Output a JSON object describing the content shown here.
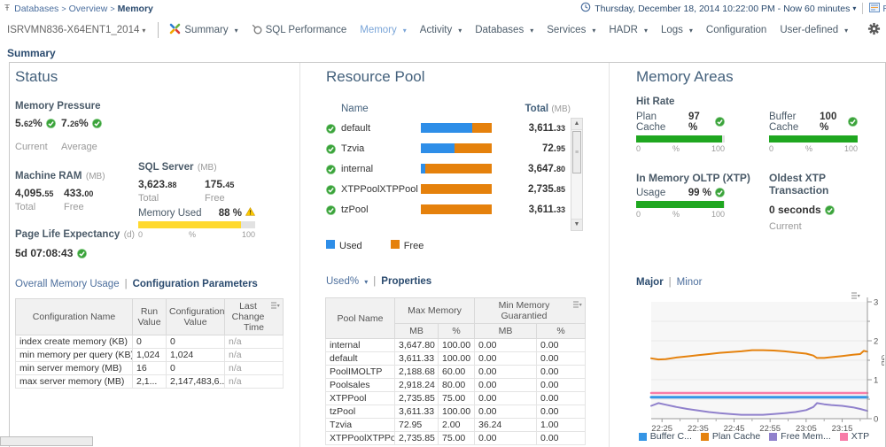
{
  "header": {
    "breadcrumb": {
      "items": [
        "Databases",
        "Overview"
      ],
      "current": "Memory"
    },
    "time_range": "Thursday, December 18, 2014 10:22:00 PM - Now 60 minutes",
    "reports_label": "R",
    "nav": {
      "server": "ISRVMN836-X64ENT1_2014",
      "items": [
        {
          "label": "Summary",
          "dropdown": true,
          "icon": "dashboards-icon"
        },
        {
          "label": "SQL Performance",
          "dropdown": false,
          "icon": "magnifier-icon"
        },
        {
          "label": "Memory",
          "dropdown": true,
          "active": true
        },
        {
          "label": "Activity",
          "dropdown": true
        },
        {
          "label": "Databases",
          "dropdown": true
        },
        {
          "label": "Services",
          "dropdown": true
        },
        {
          "label": "HADR",
          "dropdown": true
        },
        {
          "label": "Logs",
          "dropdown": true
        },
        {
          "label": "Configuration",
          "dropdown": false
        },
        {
          "label": "User-defined",
          "dropdown": true
        }
      ]
    }
  },
  "page_title": "Summary",
  "gauge_scale": {
    "min": "0",
    "mid": "%",
    "max": "100"
  },
  "status": {
    "title": "Status",
    "memory_pressure": {
      "label": "Memory Pressure",
      "current": "5.62%",
      "average": "7.26%",
      "current_label": "Current",
      "average_label": "Average"
    },
    "machine_ram": {
      "label": "Machine RAM",
      "unit": "(MB)",
      "total": "4,095.55",
      "free": "433.00",
      "total_label": "Total",
      "free_label": "Free"
    },
    "sql_server": {
      "label": "SQL Server",
      "unit": "(MB)",
      "total": "3,623.88",
      "free": "175.45",
      "total_label": "Total",
      "free_label": "Free"
    },
    "memory_used": {
      "label": "Memory Used",
      "value": "88 %",
      "percent": 88
    },
    "page_life": {
      "label": "Page Life Expectancy",
      "unit": "(d)",
      "value": "5d 07:08:43"
    },
    "tabs": {
      "inactive": "Overall Memory Usage",
      "active": "Configuration Parameters"
    },
    "config_table": {
      "headers": [
        "Configuration Name",
        "Run Value",
        "Configuration Value",
        "Last Change Time"
      ],
      "rows": [
        [
          "index create memory (KB)",
          "0",
          "0",
          "n/a"
        ],
        [
          "min memory per query (KB)",
          "1,024",
          "1,024",
          "n/a"
        ],
        [
          "min server memory (MB)",
          "16",
          "0",
          "n/a"
        ],
        [
          "max server memory (MB)",
          "2,1...",
          "2,147,483,6...",
          "n/a"
        ]
      ]
    }
  },
  "resource_pool": {
    "title": "Resource Pool",
    "name_header": "Name",
    "total_header": "Total",
    "total_unit": "(MB)",
    "rows": [
      {
        "name": "default",
        "used_pct": 72,
        "total": "3,611.33"
      },
      {
        "name": "Tzvia",
        "used_pct": 48,
        "total": "72.95"
      },
      {
        "name": "internal",
        "used_pct": 6,
        "total": "3,647.80"
      },
      {
        "name": "XTPPoolXTPPool",
        "used_pct": 0,
        "total": "2,735.85"
      },
      {
        "name": "tzPool",
        "used_pct": 0,
        "total": "3,611.33"
      }
    ],
    "partial_sixth_row": true,
    "legend": {
      "used": "Used",
      "free": "Free"
    },
    "tabs": {
      "used_label": "Used%",
      "active": "Properties"
    },
    "properties_table": {
      "col_pool": "Pool Name",
      "group1": "Max Memory",
      "group2": "Min Memory Guarantied",
      "sub_headers": [
        "MB",
        "%",
        "MB",
        "%"
      ],
      "rows": [
        [
          "internal",
          "3,647.80",
          "100.00",
          "0.00",
          "0.00"
        ],
        [
          "default",
          "3,611.33",
          "100.00",
          "0.00",
          "0.00"
        ],
        [
          "PoolIMOLTP",
          "2,188.68",
          "60.00",
          "0.00",
          "0.00"
        ],
        [
          "Poolsales",
          "2,918.24",
          "80.00",
          "0.00",
          "0.00"
        ],
        [
          "XTPPool",
          "2,735.85",
          "75.00",
          "0.00",
          "0.00"
        ],
        [
          "tzPool",
          "3,611.33",
          "100.00",
          "0.00",
          "0.00"
        ],
        [
          "Tzvia",
          "72.95",
          "2.00",
          "36.24",
          "1.00"
        ],
        [
          "XTPPoolXTPPool",
          "2,735.85",
          "75.00",
          "0.00",
          "0.00"
        ]
      ]
    }
  },
  "memory_areas": {
    "title": "Memory Areas",
    "hit_rate_label": "Hit Rate",
    "gauges": [
      {
        "label": "Plan Cache",
        "value": "97 %",
        "percent": 97
      },
      {
        "label": "Buffer Cache",
        "value": "100 %",
        "percent": 100
      },
      {
        "label": "Usage",
        "value": "99 %",
        "percent": 99
      }
    ],
    "xtp_label": "In Memory OLTP (XTP)",
    "oldest": {
      "label": "Oldest XTP Transaction",
      "value": "0 seconds",
      "sub": "Current"
    },
    "tabs": {
      "active": "Major",
      "inactive": "Minor"
    }
  },
  "chart_data": {
    "type": "line",
    "ylabel": "GB",
    "ylim": [
      0,
      3
    ],
    "xlim": [
      0,
      60
    ],
    "grid": true,
    "legend_position": "bottom",
    "xticks": [
      {
        "t": 3,
        "label": "22:25"
      },
      {
        "t": 13,
        "label": "22:35"
      },
      {
        "t": 23,
        "label": "22:45"
      },
      {
        "t": 33,
        "label": "22:55"
      },
      {
        "t": 43,
        "label": "23:05"
      },
      {
        "t": 53,
        "label": "23:15"
      }
    ],
    "yticks": [
      0,
      1,
      2,
      3
    ],
    "series": [
      {
        "name": "Buffer Cache",
        "label": "Buffer C...",
        "color": "#3595e5",
        "width": 3,
        "points": [
          [
            0,
            0.55
          ],
          [
            60,
            0.55
          ]
        ]
      },
      {
        "name": "Plan Cache",
        "label": "Plan Cache",
        "color": "#e5820e",
        "width": 2,
        "points": [
          [
            0,
            1.55
          ],
          [
            2,
            1.52
          ],
          [
            4,
            1.53
          ],
          [
            7,
            1.57
          ],
          [
            10,
            1.6
          ],
          [
            13,
            1.63
          ],
          [
            16,
            1.66
          ],
          [
            19,
            1.69
          ],
          [
            22,
            1.71
          ],
          [
            25,
            1.73
          ],
          [
            28,
            1.76
          ],
          [
            31,
            1.76
          ],
          [
            34,
            1.75
          ],
          [
            37,
            1.73
          ],
          [
            40,
            1.7
          ],
          [
            43,
            1.67
          ],
          [
            45,
            1.62
          ],
          [
            46,
            1.56
          ],
          [
            48,
            1.56
          ],
          [
            50,
            1.58
          ],
          [
            53,
            1.61
          ],
          [
            56,
            1.64
          ],
          [
            58,
            1.66
          ],
          [
            59,
            1.74
          ],
          [
            60,
            1.72
          ]
        ]
      },
      {
        "name": "Free Memory",
        "label": "Free Mem...",
        "color": "#9081cc",
        "width": 2,
        "points": [
          [
            0,
            0.33
          ],
          [
            2,
            0.4
          ],
          [
            4,
            0.36
          ],
          [
            7,
            0.3
          ],
          [
            10,
            0.25
          ],
          [
            13,
            0.21
          ],
          [
            16,
            0.17
          ],
          [
            19,
            0.14
          ],
          [
            22,
            0.12
          ],
          [
            25,
            0.1
          ],
          [
            28,
            0.1
          ],
          [
            31,
            0.1
          ],
          [
            34,
            0.12
          ],
          [
            37,
            0.14
          ],
          [
            40,
            0.17
          ],
          [
            43,
            0.22
          ],
          [
            45,
            0.3
          ],
          [
            46,
            0.4
          ],
          [
            48,
            0.37
          ],
          [
            50,
            0.35
          ],
          [
            53,
            0.33
          ],
          [
            56,
            0.29
          ],
          [
            58,
            0.25
          ],
          [
            60,
            0.2
          ]
        ]
      },
      {
        "name": "XTP",
        "label": "XTP",
        "color": "#f87ca8",
        "width": 2.5,
        "points": [
          [
            0,
            0.66
          ],
          [
            60,
            0.66
          ]
        ]
      }
    ]
  },
  "colors": {
    "ok_green": "#3ba33b",
    "warn_yellow": "#ffcc00",
    "gauge_green": "#1fa720",
    "used_blue": "#2e8ee8",
    "free_orange": "#e5810c",
    "link_blue": "#4d6f9d",
    "active_navy": "#2b4b6f"
  },
  "icons": {
    "breadcrumb": "action-icon",
    "time": "clock-icon",
    "reports": "report-icon",
    "nav_summary": "dashboards-icon",
    "nav_sqlperf": "magnifier-icon",
    "settings": "gear-icon",
    "status_ok": "check-circle-icon",
    "status_warn": "warning-triangle-icon",
    "table_menu": "column-menu-icon"
  }
}
